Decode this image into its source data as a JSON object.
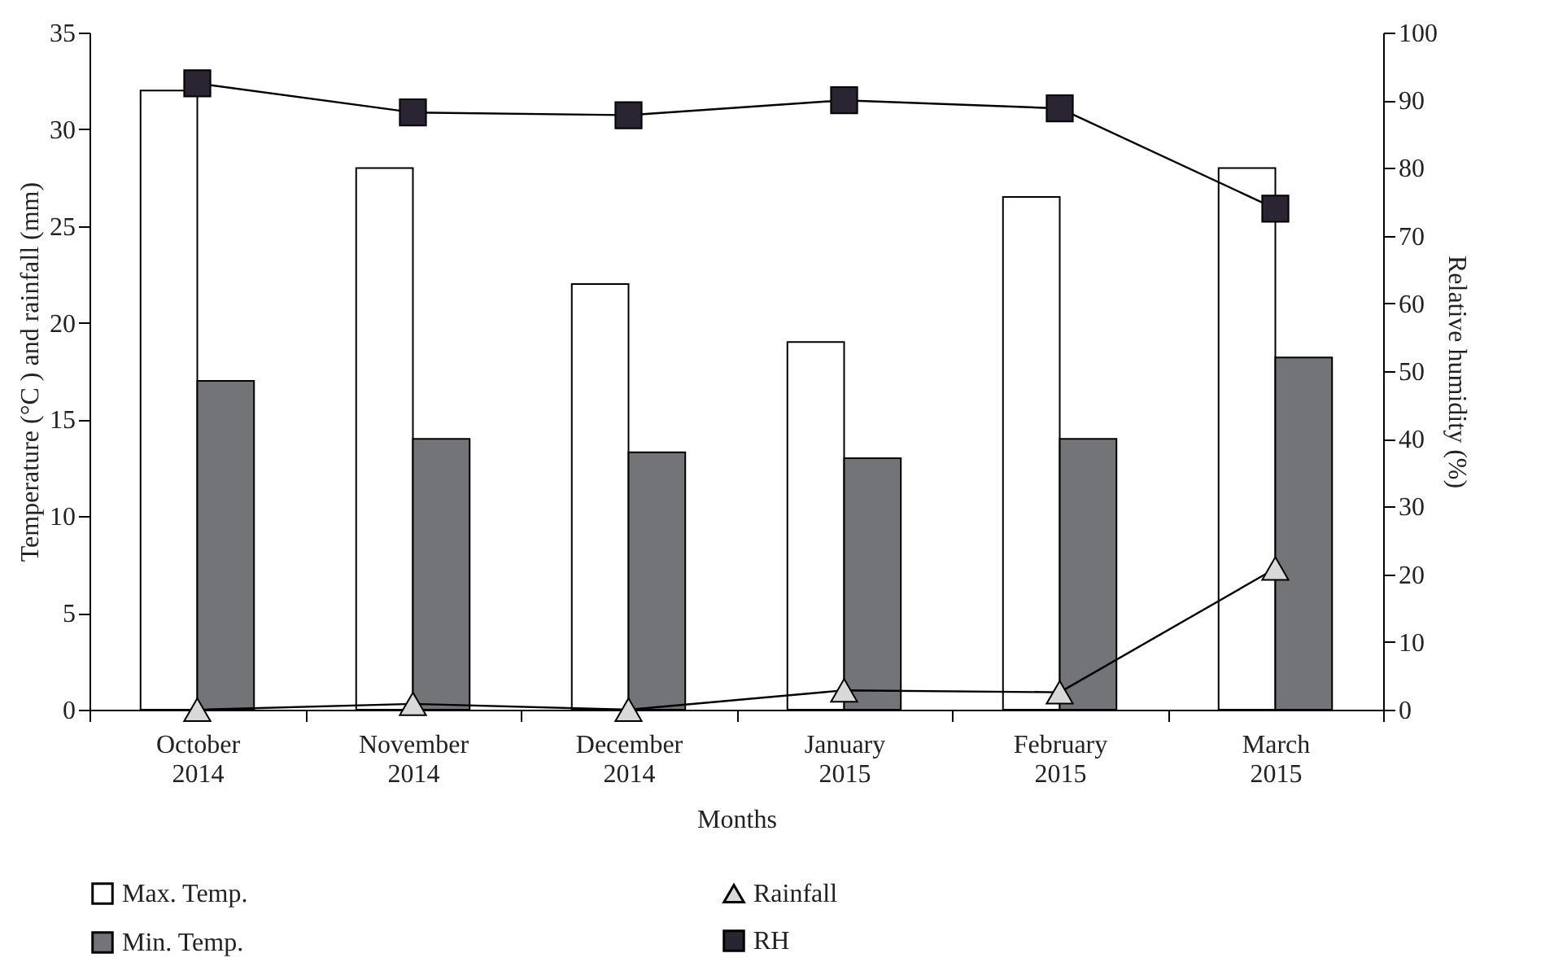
{
  "chart_data": {
    "type": "bar",
    "xlabel": "Months",
    "ylabel": "Temperature (°C ) and rainfall (mm)",
    "y2label": "Relative humidity (%)",
    "categories": [
      "October 2014",
      "November 2014",
      "December 2014",
      "January 2015",
      "February 2015",
      "March 2015"
    ],
    "series": [
      {
        "name": "Max. Temp.",
        "color": "#ffffff",
        "values": [
          32,
          28,
          22,
          19,
          26.5,
          28
        ]
      },
      {
        "name": "Min. Temp.",
        "color": "#737478",
        "values": [
          17,
          14,
          13.3,
          13,
          14,
          18.2
        ]
      },
      {
        "name": "Rainfall",
        "type": "line",
        "marker": "triangle",
        "color": "#d9d9d9",
        "values": [
          0,
          0.3,
          0,
          1,
          0.9,
          7.3
        ]
      },
      {
        "name": "RH",
        "type": "line",
        "axis": "y2",
        "marker": "square",
        "color": "#2b2433",
        "values": [
          92.5,
          88.2,
          87.8,
          90,
          88.8,
          74
        ]
      }
    ],
    "ylim": [
      0,
      35
    ],
    "yticks": [
      0,
      5,
      10,
      15,
      20,
      25,
      30,
      35
    ],
    "y2lim": [
      0,
      100
    ],
    "y2ticks": [
      0,
      10,
      20,
      30,
      40,
      50,
      60,
      70,
      80,
      90,
      100
    ],
    "legend": "bottom",
    "grid": false
  }
}
